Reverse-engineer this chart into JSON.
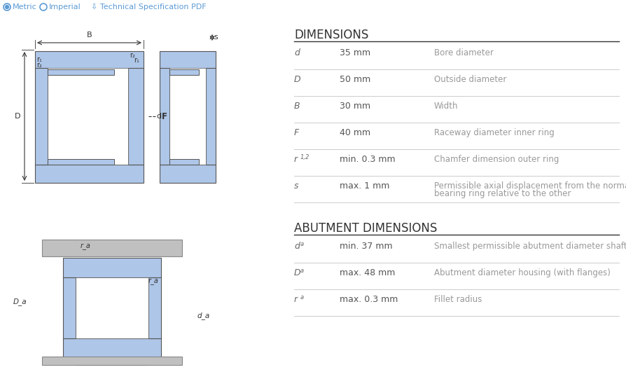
{
  "bg_color": "#ffffff",
  "header_text_color": "#5b9bd5",
  "label_color": "#555555",
  "value_color": "#555555",
  "desc_color": "#888888",
  "title_color": "#333333",
  "line_color": "#cccccc",
  "top_bar": {
    "metric_text": "Metric",
    "imperial_text": "Imperial",
    "pdf_text": "Technical Specification PDF",
    "text_color": "#5b9bd5"
  },
  "dimensions_title": "DIMENSIONS",
  "dimensions_rows": [
    {
      "label": "d",
      "label_sub": "",
      "value": "35 mm",
      "desc": "Bore diameter"
    },
    {
      "label": "D",
      "label_sub": "",
      "value": "50 mm",
      "desc": "Outside diameter"
    },
    {
      "label": "B",
      "label_sub": "",
      "value": "30 mm",
      "desc": "Width"
    },
    {
      "label": "F",
      "label_sub": "",
      "value": "40 mm",
      "desc": "Raceway diameter inner ring"
    },
    {
      "label": "r",
      "label_sub": "1,2",
      "value": "min. 0.3 mm",
      "desc": "Chamfer dimension outer ring"
    },
    {
      "label": "s",
      "label_sub": "",
      "value": "max. 1 mm",
      "desc": "Permissible axial displacement from the normal position of one\nbearing ring relative to the other"
    }
  ],
  "abutment_title": "ABUTMENT DIMENSIONS",
  "abutment_rows": [
    {
      "label": "d",
      "label_sub": "a",
      "value": "min. 37 mm",
      "desc": "Smallest permissible abutment diameter shaft, bearings with flanges"
    },
    {
      "label": "D",
      "label_sub": "a",
      "value": "max. 48 mm",
      "desc": "Abutment diameter housing (with flanges)"
    },
    {
      "label": "r",
      "label_sub": "a",
      "value": "max. 0.3 mm",
      "desc": "Fillet radius"
    }
  ],
  "bearing_color": "#aec6e8",
  "bearing_outline": "#555555"
}
